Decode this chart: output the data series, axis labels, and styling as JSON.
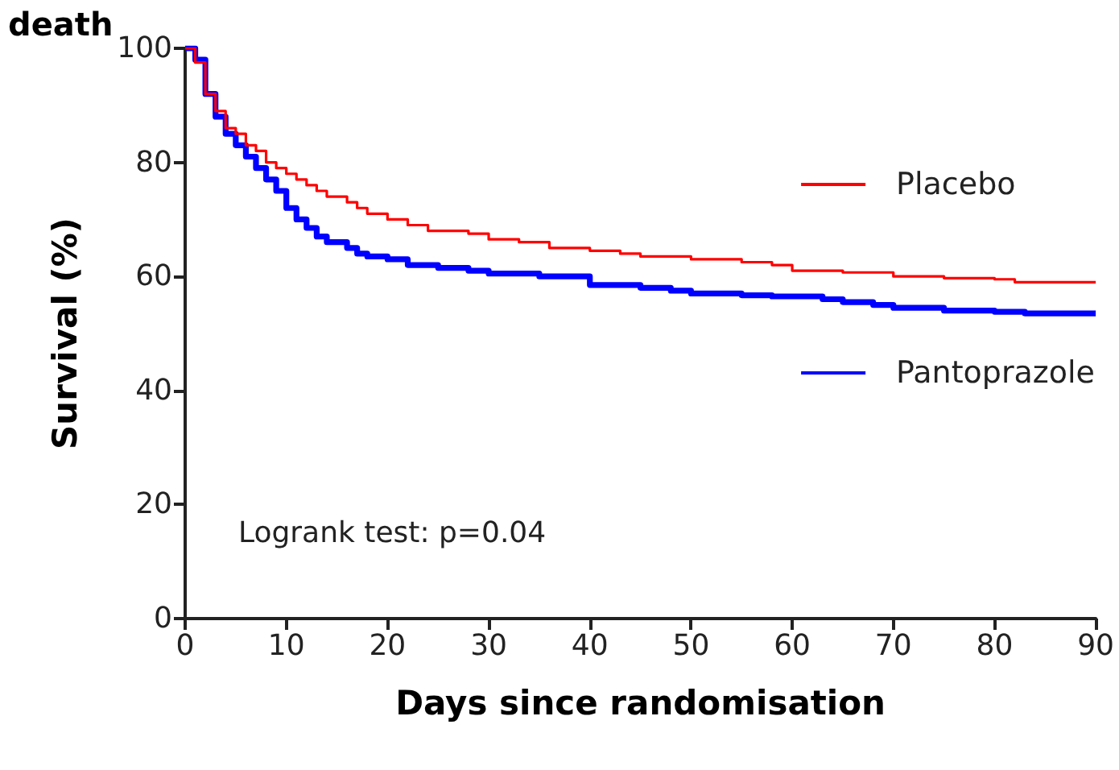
{
  "chart_data": {
    "type": "step",
    "title": "death",
    "xlabel": "Days since randomisation",
    "ylabel": "Survival (%)",
    "xlim": [
      0,
      90
    ],
    "xticks": [
      0,
      10,
      20,
      30,
      40,
      50,
      60,
      70,
      80,
      90
    ],
    "ylim": [
      0,
      100
    ],
    "yticks": [
      0,
      20,
      40,
      60,
      80,
      100
    ],
    "grid": false,
    "legend": "right",
    "marker": "none",
    "line_style": "solid",
    "annotations": [
      "Logrank test: p=0.04"
    ],
    "series": [
      {
        "name": "Placebo",
        "color": "#ff0000",
        "x": [
          0,
          1,
          2,
          3,
          4,
          5,
          6,
          7,
          8,
          9,
          10,
          11,
          12,
          13,
          14,
          16,
          17,
          18,
          20,
          22,
          24,
          28,
          30,
          33,
          36,
          40,
          43,
          45,
          50,
          55,
          58,
          60,
          65,
          70,
          75,
          80,
          82,
          90
        ],
        "values": [
          100,
          97.5,
          92,
          89,
          86,
          85,
          83,
          82,
          80,
          79,
          78,
          77,
          76,
          75,
          74,
          73,
          72,
          71,
          70,
          69,
          68,
          67.5,
          66.5,
          66,
          65,
          64.5,
          64,
          63.5,
          63,
          62.5,
          62,
          61,
          60.7,
          60,
          59.7,
          59.5,
          59,
          59
        ]
      },
      {
        "name": "Pantoprazole",
        "color": "#0000ff",
        "x": [
          0,
          1,
          2,
          3,
          4,
          5,
          6,
          7,
          8,
          9,
          10,
          11,
          12,
          13,
          14,
          16,
          17,
          18,
          20,
          22,
          25,
          28,
          30,
          35,
          40,
          45,
          48,
          50,
          55,
          58,
          63,
          65,
          68,
          70,
          75,
          80,
          83,
          90
        ],
        "values": [
          100,
          98,
          92,
          88,
          85,
          83,
          81,
          79,
          77,
          75,
          72,
          70,
          68.5,
          67,
          66,
          65,
          64,
          63.5,
          63,
          62,
          61.5,
          61,
          60.5,
          60,
          58.5,
          58,
          57.5,
          57,
          56.7,
          56.5,
          56,
          55.5,
          55,
          54.5,
          54,
          53.8,
          53.5,
          53.5
        ]
      }
    ]
  }
}
